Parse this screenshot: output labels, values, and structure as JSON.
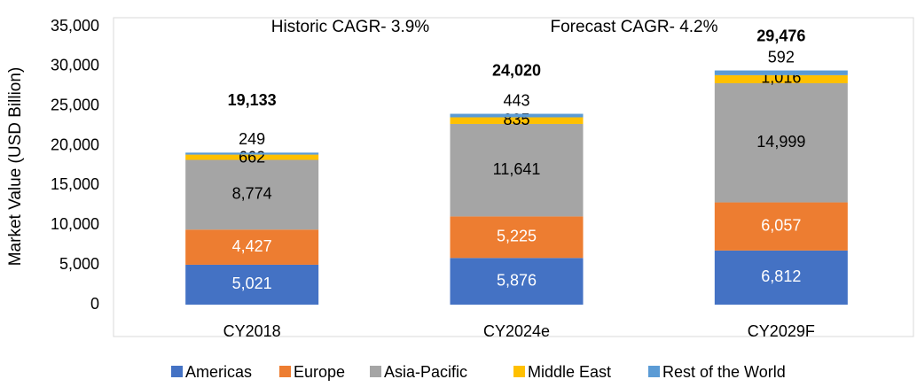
{
  "chart_data": {
    "type": "stacked_bar",
    "annotations": [
      "Historic CAGR- 3.9%",
      "Forecast CAGR- 4.2%"
    ],
    "y_label": "Market Value (USD Billion)",
    "categories": [
      "CY2018",
      "CY2024e",
      "CY2029F"
    ],
    "series": [
      {
        "name": "Americas",
        "color": "#4472c4",
        "values": [
          5021,
          5876,
          6812
        ],
        "value_labels": [
          "5,021",
          "5,876",
          "6,812"
        ]
      },
      {
        "name": "Europe",
        "color": "#ed7d31",
        "values": [
          4427,
          5225,
          6057
        ],
        "value_labels": [
          "4,427",
          "5,225",
          "6,057"
        ]
      },
      {
        "name": "Asia-Pacific",
        "color": "#a5a5a5",
        "values": [
          8774,
          11641,
          14999
        ],
        "value_labels": [
          "8,774",
          "11,641",
          "14,999"
        ]
      },
      {
        "name": "Middle East",
        "color": "#ffc000",
        "values": [
          662,
          835,
          1016
        ],
        "value_labels": [
          "662",
          "835",
          "1,016"
        ]
      },
      {
        "name": "Rest of the World",
        "color": "#5b9bd5",
        "values": [
          249,
          443,
          592
        ],
        "value_labels": [
          "249",
          "443",
          "592"
        ]
      }
    ],
    "totals": {
      "values": [
        19133,
        24020,
        29476
      ],
      "value_labels": [
        "19,133",
        "24,020",
        "29,476"
      ]
    },
    "ylim": [
      0,
      35000
    ],
    "yticks": [
      0,
      {
        "value": 5000,
        "label": "5,000"
      },
      {
        "value": 10000,
        "label": "10,000"
      },
      {
        "value": 15000,
        "label": "15,000"
      },
      {
        "value": 20000,
        "label": "20,000"
      },
      {
        "value": 25000,
        "label": "25,000"
      },
      {
        "value": 30000,
        "label": "30,000"
      },
      {
        "value": 35000,
        "label": "35,000"
      }
    ],
    "grid": false,
    "legend": "bottom"
  }
}
